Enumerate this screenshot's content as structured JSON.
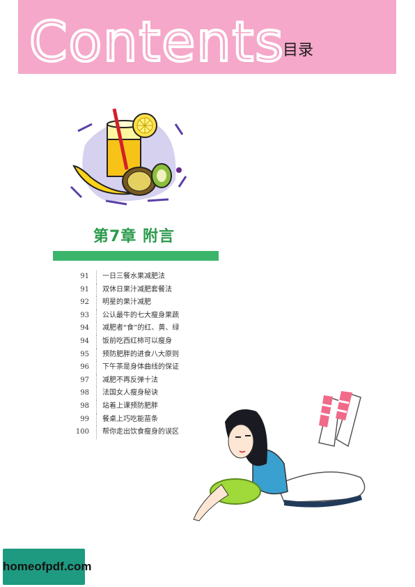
{
  "header": {
    "title_en": "Contents",
    "title_cn": "目录",
    "background_color": "#f5a8c9"
  },
  "chapter": {
    "title": "第7章  附言",
    "accent_color": "#3bb56a"
  },
  "toc": [
    {
      "page": "91",
      "title": "一日三餐水果减肥法"
    },
    {
      "page": "91",
      "title": "双休日果汁减肥套餐法"
    },
    {
      "page": "92",
      "title": "明星的果汁减肥"
    },
    {
      "page": "93",
      "title": "公认最牛的七大瘦身果蔬"
    },
    {
      "page": "94",
      "title": "减肥者“食”的红、黄、绿"
    },
    {
      "page": "94",
      "title": "饭前吃西红柿可以瘦身"
    },
    {
      "page": "95",
      "title": "预防肥胖的进食八大原则"
    },
    {
      "page": "96",
      "title": "下午茶是身体曲线的保证"
    },
    {
      "page": "97",
      "title": "减肥不再反弹十法"
    },
    {
      "page": "98",
      "title": "法国女人瘦身秘诀"
    },
    {
      "page": "98",
      "title": "站着上课预防肥胖"
    },
    {
      "page": "99",
      "title": "餐桌上巧吃能苗条"
    },
    {
      "page": "100",
      "title": "帮你走出饮食瘦身的误区"
    }
  ],
  "watermark": {
    "text": "homeofpdf.com"
  },
  "illustrations": {
    "juice": "juice-fruit-illustration",
    "girl": "reclining-girl-illustration"
  }
}
